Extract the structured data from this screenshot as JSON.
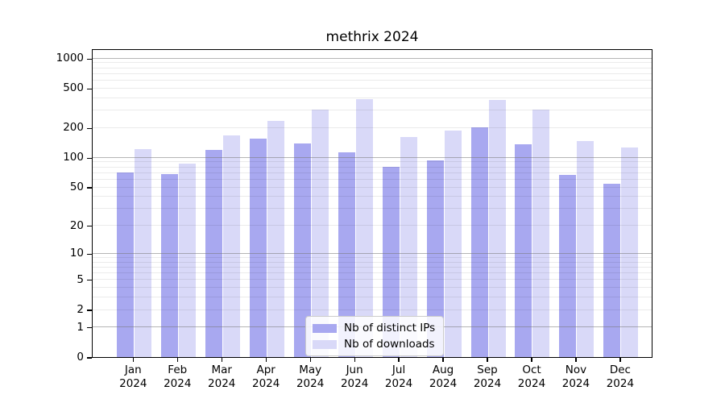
{
  "figure": {
    "title": "methrix 2024"
  },
  "chart_data": {
    "type": "bar",
    "title": "methrix 2024",
    "categories": [
      "Jan 2024",
      "Feb 2024",
      "Mar 2024",
      "Apr 2024",
      "May 2024",
      "Jun 2024",
      "Jul 2024",
      "Aug 2024",
      "Sep 2024",
      "Oct 2024",
      "Nov 2024",
      "Dec 2024"
    ],
    "series": [
      {
        "name": "Nb of distinct IPs",
        "color": "#a8a8f0",
        "values": [
          70,
          68,
          120,
          154,
          140,
          113,
          80,
          93,
          200,
          136,
          67,
          54
        ]
      },
      {
        "name": "Nb of downloads",
        "color": "#d9d9f8",
        "values": [
          121,
          86,
          166,
          236,
          302,
          389,
          161,
          188,
          384,
          302,
          148,
          126
        ]
      }
    ],
    "yscale": "log1p",
    "y_ticks": [
      0,
      1,
      2,
      5,
      10,
      20,
      50,
      100,
      200,
      500,
      1000
    ],
    "ylim": [
      0,
      1250
    ],
    "xlabel": "",
    "ylabel": "",
    "grid": true,
    "legend_position": "lower center",
    "colors": {
      "ips_bar": "#a8a8f0",
      "downloads_bar": "#d9d9f8",
      "major_grid": "#787878",
      "minor_grid": "#e8e8e8",
      "spine": "#000000",
      "background": "#ffffff"
    }
  }
}
